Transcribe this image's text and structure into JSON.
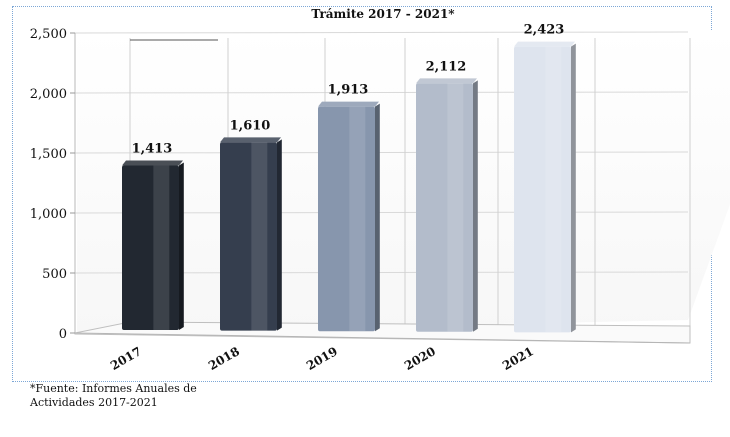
{
  "chart_data": {
    "type": "bar",
    "title": "Trámite 2017 - 2021*",
    "categories": [
      "2017",
      "2018",
      "2019",
      "2020",
      "2021"
    ],
    "values": [
      1413,
      1610,
      1913,
      2112,
      2423
    ],
    "value_labels": [
      "1,413",
      "1,610",
      "1,913",
      "2,112",
      "2,423"
    ],
    "ylim": [
      0,
      2500
    ],
    "yticks": [
      0,
      500,
      1000,
      1500,
      2000,
      2500
    ],
    "ytick_labels": [
      "0",
      "500",
      "1,000",
      "1,500",
      "2,000",
      "2,500"
    ],
    "grid": true,
    "legend": "none",
    "bar_colors": [
      "#222831",
      "#353e4e",
      "#8796ad",
      "#b3bccb",
      "#dee4ee"
    ]
  },
  "footnote": "*Fuente: Informes Anuales de\nActividades 2017-2021"
}
